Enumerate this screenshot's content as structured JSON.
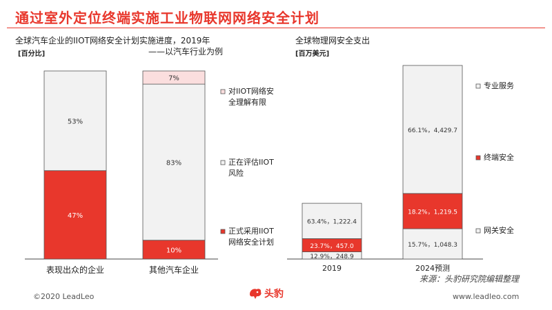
{
  "page": {
    "title": "通过室外定位终端实施工业物联网网络安全计划",
    "footer_left": "©2020 LeadLeo",
    "footer_right": "www.leadleo.com",
    "source": "来源：头豹研究院编辑整理",
    "logo_text": "头豹"
  },
  "colors": {
    "red": "#e8372c",
    "light_gray": "#f2f2f2",
    "pink": "#fbdede",
    "title_red": "#e8372c"
  },
  "chart_data": [
    {
      "type": "bar",
      "stacked": true,
      "title": "全球汽车企业的IIOT网络安全计划实施进度，2019年",
      "subtitle": "——以汽车行业为例",
      "unit": "[百分比]",
      "categories": [
        "表现出众的企业",
        "其他汽车企业"
      ],
      "series": [
        {
          "name": "正式采用IIOT网络安全计划",
          "color": "#e8372c",
          "values": [
            47,
            10
          ],
          "labels": [
            "47%",
            "10%"
          ]
        },
        {
          "name": "正在评估IIOT风险",
          "color": "#f2f2f2",
          "values": [
            53,
            83
          ],
          "labels": [
            "53%",
            "83%"
          ]
        },
        {
          "name": "对IIOT网络安全理解有限",
          "color": "#fbdede",
          "values": [
            0,
            7
          ],
          "labels": [
            "",
            "7%"
          ]
        }
      ],
      "legend_lines": [
        [
          "对IIOT网络安",
          "全理解有限"
        ],
        [
          "正在评估IIOT",
          "风险"
        ],
        [
          "正式采用IIOT",
          "网络安全计划"
        ]
      ],
      "ylim": [
        0,
        100
      ]
    },
    {
      "type": "bar",
      "stacked": true,
      "title": "全球物理网安全支出",
      "unit": "[百万美元]",
      "categories": [
        "2019",
        "2024预测"
      ],
      "series": [
        {
          "name": "网关安全",
          "color": "#f2f2f2",
          "values": [
            248.9,
            1048.3
          ],
          "labels": [
            "12.9%，248.9",
            "15.7%，1,048.3"
          ]
        },
        {
          "name": "终端安全",
          "color": "#e8372c",
          "values": [
            457.0,
            1219.5
          ],
          "labels": [
            "23.7%，457.0",
            "18.2%，1,219.5"
          ]
        },
        {
          "name": "专业服务",
          "color": "#f2f2f2",
          "values": [
            1222.4,
            4429.7
          ],
          "labels": [
            "63.4%，1,222.4",
            "66.1%，4,429.7"
          ]
        }
      ],
      "legend": [
        "专业服务",
        "终端安全",
        "网关安全"
      ]
    }
  ]
}
